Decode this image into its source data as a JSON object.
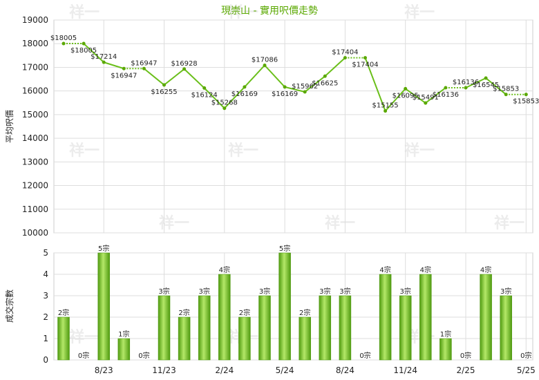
{
  "chart_data": [
    {
      "type": "line",
      "title": "現崇山 - 實用呎價走勢",
      "ylabel": "平均呎價",
      "ylim": [
        10000,
        19000
      ],
      "yticks": [
        10000,
        11000,
        12000,
        13000,
        14000,
        15000,
        16000,
        17000,
        18000,
        19000
      ],
      "xticks": [
        "8/23",
        "11/23",
        "2/24",
        "5/24",
        "8/24",
        "11/24",
        "2/25",
        "5/25"
      ],
      "grid": true,
      "values": [
        18005,
        18005,
        17214,
        16947,
        16947,
        16255,
        16928,
        16124,
        15268,
        16169,
        17086,
        16169,
        15962,
        16625,
        17404,
        17404,
        15155,
        16095,
        15491,
        16136,
        16136,
        16545,
        15853,
        15853
      ],
      "labels": [
        "$18005",
        "$18005",
        "$17214",
        "$16947",
        "$16947",
        "$16255",
        "$16928",
        "$16124",
        "$15268",
        "$16169",
        "$17086",
        "$16169",
        "$15962",
        "$16625",
        "$17404",
        "$17404",
        "$15155",
        "$16095",
        "$15491",
        "$16136",
        "$16136",
        "$16545",
        "$15853",
        "$15853"
      ],
      "carried": [
        false,
        true,
        false,
        false,
        true,
        false,
        false,
        false,
        false,
        false,
        false,
        false,
        false,
        false,
        false,
        true,
        false,
        false,
        false,
        false,
        true,
        false,
        false,
        true
      ],
      "colors": {
        "line": "#6abf1a",
        "dotted": "#6abf1a",
        "point": "#5aa800"
      }
    },
    {
      "type": "bar",
      "ylabel": "成交宗數",
      "ylim": [
        0,
        5
      ],
      "yticks": [
        0,
        1,
        2,
        3,
        4,
        5
      ],
      "xticks": [
        "8/23",
        "11/23",
        "2/24",
        "5/24",
        "8/24",
        "11/24",
        "2/25",
        "5/25"
      ],
      "grid": true,
      "values": [
        2,
        0,
        5,
        1,
        0,
        3,
        2,
        3,
        4,
        2,
        3,
        5,
        2,
        3,
        3,
        0,
        4,
        3,
        4,
        1,
        0,
        4,
        3,
        0
      ],
      "labels": [
        "2宗",
        "0宗",
        "5宗",
        "1宗",
        "0宗",
        "3宗",
        "2宗",
        "3宗",
        "4宗",
        "2宗",
        "3宗",
        "5宗",
        "2宗",
        "3宗",
        "3宗",
        "0宗",
        "4宗",
        "3宗",
        "4宗",
        "1宗",
        "0宗",
        "4宗",
        "3宗",
        "0宗"
      ],
      "colors": {
        "bar_dark": "#4f9a10",
        "bar_light": "#a8e05a"
      }
    }
  ],
  "watermark": "祥一"
}
